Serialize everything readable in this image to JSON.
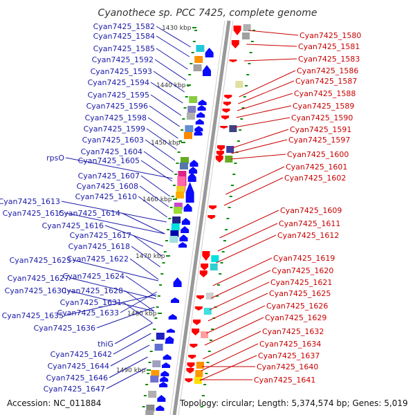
{
  "title": "Cyanothece sp. PCC 7425, complete genome",
  "footer": {
    "accession": "Accession: NC_011884",
    "topology": "Topology: circular; Length: 5,374,574 bp; Genes: 5,019"
  },
  "scale_labels": [
    "1430 kbp",
    "1440 kbp",
    "1450 kbp",
    "1460 kbp",
    "1470 kbp",
    "1480 kbp",
    "1490 kbp"
  ],
  "left_genes": [
    "Cyan7425_1582",
    "Cyan7425_1584",
    "Cyan7425_1585",
    "Cyan7425_1592",
    "Cyan7425_1593",
    "Cyan7425_1594",
    "Cyan7425_1595",
    "Cyan7425_1596",
    "Cyan7425_1598",
    "Cyan7425_1599",
    "Cyan7425_1603",
    "Cyan7425_1604",
    "rpsO",
    "Cyan7425_1605",
    "Cyan7425_1607",
    "Cyan7425_1608",
    "Cyan7425_1610",
    "Cyan7425_1613",
    "Cyan7425_1615",
    "Cyan7425_1614",
    "Cyan7425_1616",
    "Cyan7425_1617",
    "Cyan7425_1618",
    "Cyan7425_1622",
    "Cyan7425_1623",
    "Cyan7425_1624",
    "Cyan7425_1627",
    "Cyan7425_1628",
    "Cyan7425_1630",
    "Cyan7425_1631",
    "Cyan7425_1633",
    "Cyan7425_1635",
    "Cyan7425_1636",
    "thiG",
    "Cyan7425_1642",
    "Cyan7425_1644",
    "Cyan7425_1646",
    "Cyan7425_1647"
  ],
  "right_genes": [
    "Cyan7425_1580",
    "Cyan7425_1581",
    "Cyan7425_1583",
    "Cyan7425_1586",
    "Cyan7425_1587",
    "Cyan7425_1588",
    "Cyan7425_1589",
    "Cyan7425_1590",
    "Cyan7425_1591",
    "Cyan7425_1597",
    "Cyan7425_1600",
    "Cyan7425_1601",
    "Cyan7425_1602",
    "Cyan7425_1609",
    "Cyan7425_1611",
    "Cyan7425_1612",
    "Cyan7425_1619",
    "Cyan7425_1620",
    "Cyan7425_1621",
    "Cyan7425_1625",
    "Cyan7425_1626",
    "Cyan7425_1629",
    "Cyan7425_1632",
    "Cyan7425_1634",
    "Cyan7425_1637",
    "Cyan7425_1640",
    "Cyan7425_1641"
  ],
  "colors": {
    "left_label": "#1a1aa8",
    "right_label": "#c80000",
    "forward_strand": "#0a0aff",
    "reverse_strand": "#ff0000",
    "backbone": "#999999",
    "tick": "#0a8a0a"
  }
}
